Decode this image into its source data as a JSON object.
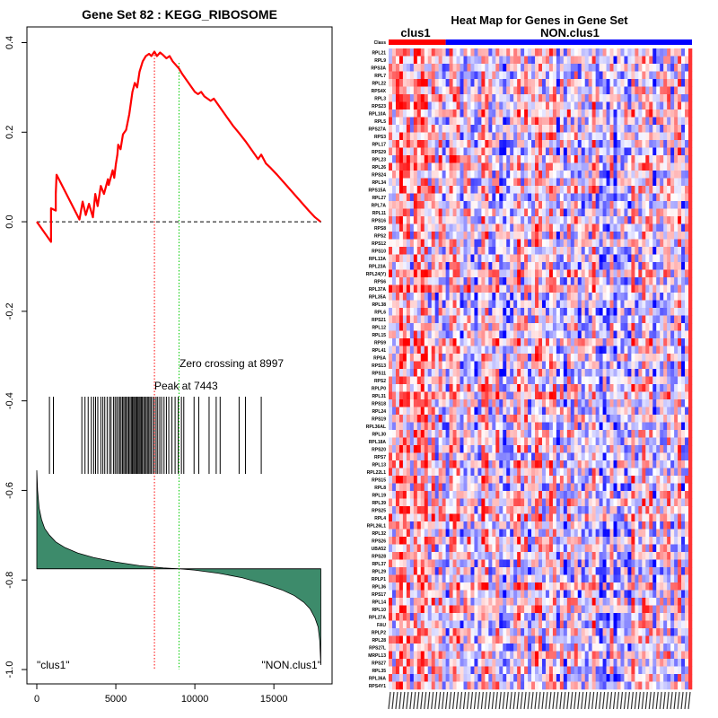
{
  "chart_data": [
    {
      "type": "line",
      "panel": "enrichment-plot",
      "title": "Gene Set  82 : KEGG_RIBOSOME",
      "xlabel": "",
      "ylabel": "",
      "xlim": [
        0,
        18000
      ],
      "ylim": [
        -1.0,
        0.42
      ],
      "x_ticks": [
        0,
        5000,
        10000,
        15000
      ],
      "x_tick_labels": [
        "0",
        "5000",
        "10000",
        "15000"
      ],
      "y_ticks": [
        0.4,
        0.2,
        0.0,
        -0.2,
        -0.4,
        -0.6,
        -0.8,
        -1.0
      ],
      "y_tick_labels": [
        "0.4",
        "0.2",
        "0.0",
        "-0.2",
        "-0.4",
        "-0.6",
        "-0.8",
        "-1.0"
      ],
      "running_es": {
        "name": "Running enrichment score",
        "color": "#ff0000",
        "x": [
          0,
          900,
          900,
          1200,
          1200,
          1250,
          2700,
          2900,
          3100,
          3300,
          3550,
          3700,
          3850,
          4050,
          4250,
          4500,
          4550,
          4800,
          4900,
          5000,
          5100,
          5150,
          5300,
          5450,
          5650,
          5850,
          6050,
          6200,
          6350,
          6500,
          6700,
          6900,
          7100,
          7250,
          7443,
          7600,
          7800,
          8000,
          8200,
          8400,
          8600,
          8800,
          9000,
          9200,
          9400,
          9600,
          9800,
          10000,
          10200,
          10400,
          10600,
          10800,
          11000,
          11200,
          11400,
          11700,
          12000,
          12400,
          12800,
          13200,
          13600,
          14000,
          14200,
          14500,
          14800,
          15200,
          15700,
          16200,
          16700,
          17200,
          17600,
          17950
        ],
        "y": [
          0.0,
          -0.045,
          0.03,
          0.025,
          0.062,
          0.105,
          0.005,
          0.045,
          0.015,
          0.04,
          0.01,
          0.062,
          0.035,
          0.08,
          0.062,
          0.095,
          0.082,
          0.115,
          0.098,
          0.128,
          0.15,
          0.172,
          0.162,
          0.195,
          0.205,
          0.24,
          0.29,
          0.31,
          0.3,
          0.335,
          0.358,
          0.37,
          0.375,
          0.37,
          0.38,
          0.37,
          0.378,
          0.372,
          0.365,
          0.37,
          0.358,
          0.35,
          0.342,
          0.33,
          0.32,
          0.31,
          0.3,
          0.29,
          0.285,
          0.29,
          0.28,
          0.275,
          0.27,
          0.275,
          0.265,
          0.25,
          0.235,
          0.215,
          0.198,
          0.18,
          0.16,
          0.14,
          0.15,
          0.13,
          0.12,
          0.105,
          0.085,
          0.065,
          0.045,
          0.025,
          0.01,
          0.0
        ]
      },
      "zero_line": {
        "y": 0.0,
        "style": "dashed"
      },
      "peak": {
        "x": 7443,
        "label": "Peak at 7443",
        "color": "#ff0000"
      },
      "zero_crossing": {
        "x": 8997,
        "label": "Zero crossing at 8997",
        "color": "#00cc00"
      },
      "hit_positions": [
        800,
        1050,
        2850,
        3050,
        3250,
        3450,
        3600,
        3720,
        3860,
        4050,
        4180,
        4300,
        4450,
        4600,
        4700,
        4850,
        4950,
        5050,
        5150,
        5250,
        5330,
        5420,
        5500,
        5580,
        5660,
        5740,
        5820,
        5900,
        5980,
        6050,
        6120,
        6190,
        6260,
        6330,
        6400,
        6470,
        6540,
        6610,
        6680,
        6760,
        6840,
        6920,
        7000,
        7080,
        7160,
        7240,
        7350,
        7443,
        7550,
        7650,
        7780,
        7900,
        8050,
        8200,
        8350,
        8550,
        8750,
        8950,
        9150,
        9300,
        9950,
        10250,
        10900,
        11350,
        11600,
        12800,
        13200,
        14200
      ],
      "ranked_metric": {
        "baseline": -0.775,
        "x": [
          0,
          50,
          150,
          300,
          500,
          800,
          1200,
          1800,
          2600,
          3600,
          5000,
          6500,
          8000,
          9000,
          10000,
          11500,
          13000,
          14500,
          15500,
          16300,
          16900,
          17300,
          17600,
          17800,
          17900,
          17970
        ],
        "y": [
          -0.555,
          -0.6,
          -0.64,
          -0.665,
          -0.685,
          -0.7,
          -0.715,
          -0.728,
          -0.74,
          -0.75,
          -0.76,
          -0.768,
          -0.773,
          -0.775,
          -0.778,
          -0.785,
          -0.795,
          -0.81,
          -0.822,
          -0.835,
          -0.85,
          -0.865,
          -0.885,
          -0.905,
          -0.935,
          -0.99
        ],
        "fill_color": "#3d8b6b"
      },
      "class_labels": {
        "left": "\"clus1\"",
        "right": "\"NON.clus1\""
      }
    },
    {
      "type": "heatmap",
      "panel": "gene-heatmap",
      "title": "Heat Map for Genes in Gene Set",
      "column_groups": [
        {
          "name": "clus1",
          "columns": 16,
          "color": "#ff0000"
        },
        {
          "name": "NON.clus1",
          "columns": 69,
          "color": "#0000ff"
        }
      ],
      "row_header": "Class",
      "genes": [
        "RPL21",
        "RPL9",
        "RPS3A",
        "RPL7",
        "RPL22",
        "RPS4X",
        "RPL3",
        "RPS23",
        "RPL10A",
        "RPL5",
        "RPS27A",
        "RPS3",
        "RPL17",
        "RPS29",
        "RPL23",
        "RPL26",
        "RPS24",
        "RPL34",
        "RPS15A",
        "RPL27",
        "RPL7A",
        "RPL11",
        "RPS16",
        "RPS8",
        "RPS2",
        "RPS12",
        "RPS10",
        "RPL13A",
        "RPL23A",
        "RPL24(Y)",
        "RPS6",
        "RPL37A",
        "RPL35A",
        "RPL38",
        "RPL6",
        "RPS21",
        "RPL12",
        "RPL15",
        "RPS9",
        "RPL41",
        "RPSA",
        "RPS13",
        "RPS11",
        "RPS2",
        "RPLP0",
        "RPL31",
        "RPS18",
        "RPL24",
        "RPS19",
        "RPL36AL",
        "RPL30",
        "RPL18A",
        "RPS20",
        "RPS7",
        "RPL13",
        "RPL22L1",
        "RPS15",
        "RPL8",
        "RPL19",
        "RPL39",
        "RPS25",
        "RPL4",
        "RPL26L1",
        "RPL32",
        "RPS26",
        "UBA52",
        "RPS28",
        "RPL37",
        "RPL29",
        "RPLP1",
        "RPL36",
        "RPS17",
        "RPL14",
        "RPL10",
        "RPL27A",
        "FAU",
        "RPLP2",
        "RPL28",
        "RPS27L",
        "MRPL13",
        "RPS27",
        "RPL35",
        "RPL36A",
        "RPS4Y1"
      ],
      "color_scale": [
        "#0000ff",
        "#ffffff",
        "#ff0000"
      ]
    }
  ]
}
